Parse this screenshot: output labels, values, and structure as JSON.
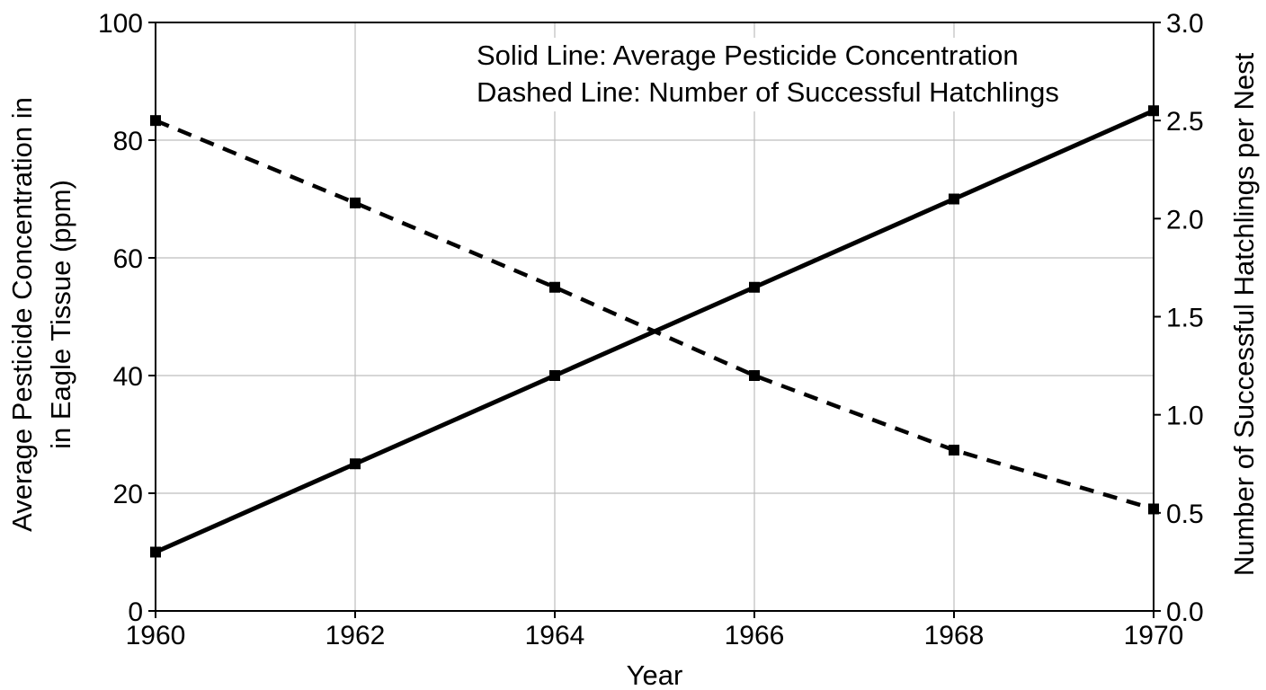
{
  "chart_data": {
    "type": "line",
    "x": [
      1960,
      1962,
      1964,
      1966,
      1968,
      1970
    ],
    "xlabel": "Year",
    "xlim": [
      1960,
      1970
    ],
    "xticks": [
      "1960",
      "1962",
      "1964",
      "1966",
      "1968",
      "1970"
    ],
    "ylabel_left": [
      "Average Pesticide Concentration in",
      "in Eagle Tissue (ppm)"
    ],
    "ylim_left": [
      0,
      100
    ],
    "yticks_left": [
      "0",
      "20",
      "40",
      "60",
      "80",
      "100"
    ],
    "ylabel_right": "Number of Successful Hatchlings per Nest",
    "ylim_right": [
      0,
      3
    ],
    "yticks_right": [
      "0.0",
      "0.5",
      "1.0",
      "1.5",
      "2.0",
      "2.5",
      "3.0"
    ],
    "grid": true,
    "legend": {
      "placement": "top-right",
      "lines": [
        "Solid Line: Average Pesticide Concentration",
        "Dashed Line: Number of Successful Hatchlings"
      ]
    },
    "series": [
      {
        "axis": "left",
        "style": "solid",
        "color": "#000000",
        "values": [
          10,
          25,
          40,
          55,
          70,
          85
        ]
      },
      {
        "axis": "right",
        "style": "dashed",
        "color": "#000000",
        "values": [
          2.5,
          2.08,
          1.65,
          1.2,
          0.82,
          0.52
        ]
      }
    ]
  }
}
